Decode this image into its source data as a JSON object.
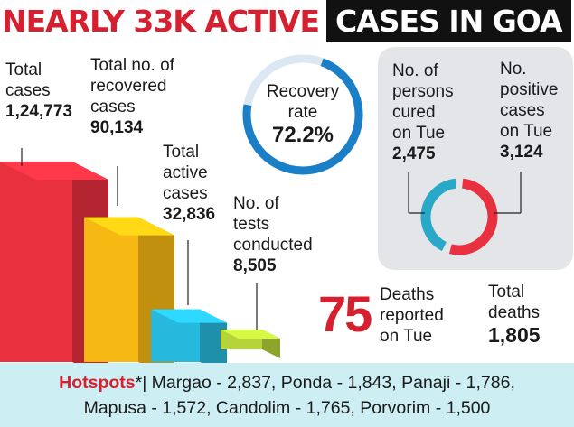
{
  "title": {
    "part1": "NEARLY 33K ACTIVE",
    "part2": "CASES IN GOA"
  },
  "colors": {
    "red": "#e8303f",
    "yellow": "#f6b812",
    "cyan": "#27b8dd",
    "green": "#b4d43a",
    "blue": "#1a7fc6",
    "teal": "#2aa8c8"
  },
  "chart_data": [
    {
      "type": "bar",
      "categories": [
        "Total cases",
        "Total no. of recovered cases",
        "Total active cases",
        "No. of tests conducted"
      ],
      "values": [
        124773,
        90134,
        32836,
        8505
      ],
      "value_labels": [
        "1,24,773",
        "90,134",
        "32,836",
        "8,505"
      ]
    },
    {
      "type": "pie",
      "categories": [
        "Recovery rate"
      ],
      "values": [
        72.2
      ],
      "value_labels": [
        "72.2%"
      ]
    },
    {
      "type": "pie",
      "categories": [
        "No. of persons cured on Tue",
        "No. positive cases on Tue"
      ],
      "values": [
        2475,
        3124
      ],
      "value_labels": [
        "2,475",
        "3,124"
      ]
    }
  ],
  "bars": {
    "total": {
      "label": [
        "Total",
        "cases"
      ],
      "value": "1,24,773"
    },
    "recovered": {
      "label": [
        "Total no. of",
        "recovered",
        "cases"
      ],
      "value": "90,134"
    },
    "active": {
      "label": [
        "Total",
        "active",
        "cases"
      ],
      "value": "32,836"
    },
    "tests": {
      "label": [
        "No. of",
        "tests",
        "conducted"
      ],
      "value": "8,505"
    }
  },
  "recovery": {
    "label": [
      "Recovery",
      "rate"
    ],
    "value": "72.2%"
  },
  "cured": {
    "label": [
      "No. of",
      "persons",
      "cured",
      "on Tue"
    ],
    "value": "2,475"
  },
  "positive": {
    "label": [
      "No.",
      "positive",
      "cases",
      "on Tue"
    ],
    "value": "3,124"
  },
  "deaths_tue": {
    "value": "75",
    "label": [
      "Deaths",
      "reported",
      "on Tue"
    ]
  },
  "deaths_total": {
    "label": [
      "Total",
      "deaths"
    ],
    "value": "1,805"
  },
  "hotspots": {
    "key": "Hotspots",
    "mark": "*|",
    "line1": " Margao - 2,837, Ponda - 1,843, Panaji - 1,786,",
    "line2": "Mapusa - 1,572, Candolim - 1,765, Porvorim - 1,500"
  }
}
